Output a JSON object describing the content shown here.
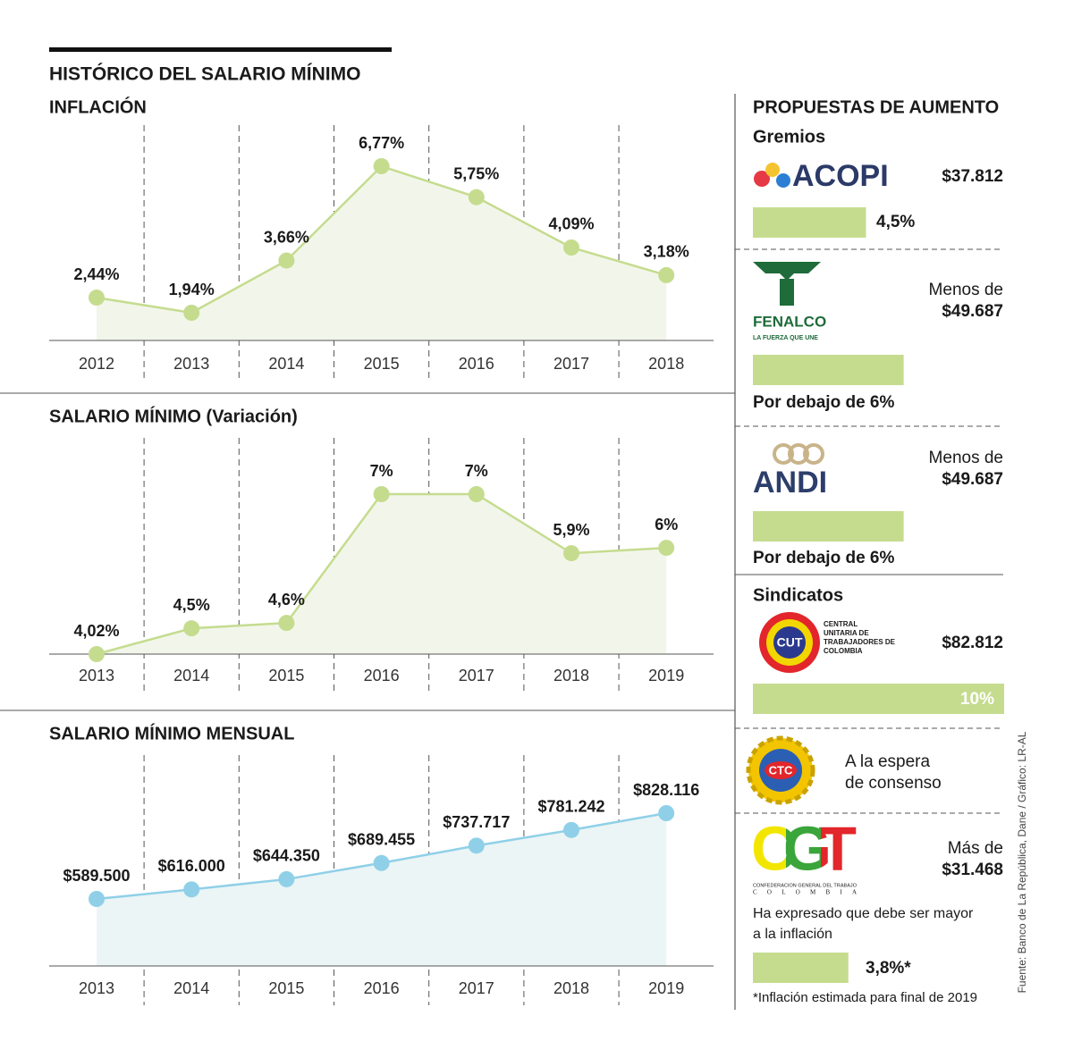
{
  "header": {
    "title": "HISTÓRICO DEL SALARIO MÍNIMO"
  },
  "chart_data": [
    {
      "type": "line",
      "title": "INFLACIÓN",
      "categories": [
        "2012",
        "2013",
        "2014",
        "2015",
        "2016",
        "2017",
        "2018"
      ],
      "values": [
        2.44,
        1.94,
        3.66,
        6.77,
        5.75,
        4.09,
        3.18
      ],
      "value_labels": [
        "2,44%",
        "1,94%",
        "3,66%",
        "6,77%",
        "5,75%",
        "4,09%",
        "3,18%"
      ],
      "color": "#c5dc8f",
      "fill": "#f2f6ea"
    },
    {
      "type": "line",
      "title": "SALARIO MÍNIMO (Variación)",
      "categories": [
        "2013",
        "2014",
        "2015",
        "2016",
        "2017",
        "2018",
        "2019"
      ],
      "values": [
        4.02,
        4.5,
        4.6,
        7,
        7,
        5.9,
        6
      ],
      "value_labels": [
        "4,02%",
        "4,5%",
        "4,6%",
        "7%",
        "7%",
        "5,9%",
        "6%"
      ],
      "color": "#c5dc8f",
      "fill": "#f2f6ea"
    },
    {
      "type": "line",
      "title": "SALARIO MÍNIMO  MENSUAL",
      "categories": [
        "2013",
        "2014",
        "2015",
        "2016",
        "2017",
        "2018",
        "2019"
      ],
      "values": [
        589500,
        616000,
        644350,
        689455,
        737717,
        781242,
        828116
      ],
      "value_labels": [
        "$589.500",
        "$616.000",
        "$644.350",
        "$689.455",
        "$737.717",
        "$781.242",
        "$828.116"
      ],
      "color": "#8fd0e8",
      "fill": "#ebf5f5"
    }
  ],
  "proposals": {
    "title": "PROPUESTAS DE AUMENTO",
    "groups": [
      {
        "name": "Gremios",
        "items": [
          {
            "logo": {
              "name": "ACOPI"
            },
            "amount": "$37.812",
            "value": 4.5,
            "value_label": "4,5%"
          },
          {
            "logo": {
              "name": "FENALCO",
              "slogan": "LA FUERZA QUE UNE"
            },
            "prefix": "Menos de",
            "amount": "$49.687",
            "value": 6,
            "value_label": "Por debajo de 6%"
          },
          {
            "logo": {
              "name": "ANDI"
            },
            "prefix": "Menos de",
            "amount": "$49.687",
            "value": 6,
            "value_label": "Por debajo de 6%"
          }
        ]
      },
      {
        "name": "Sindicatos",
        "items": [
          {
            "logo": {
              "name": "CUT",
              "lines": [
                "CENTRAL",
                "UNITARIA DE",
                "TRABAJADORES DE",
                "COLOMBIA"
              ]
            },
            "amount": "$82.812",
            "value": 10,
            "value_label": "10%"
          },
          {
            "logo": {
              "name": "CTC"
            },
            "note": [
              "A la espera",
              "de consenso"
            ]
          },
          {
            "logo": {
              "name": "CGT",
              "subtitle": "CONFEDERACION GENERAL DEL TRABAJO",
              "country": "COLOMBIA"
            },
            "prefix": "Más de",
            "amount": "$31.468",
            "note": [
              "Ha expresado que debe ser mayor",
              "a la inflación"
            ],
            "value": 3.8,
            "value_label": "3,8%*"
          }
        ]
      }
    ]
  },
  "footnote": "*Inflación estimada para final de 2019",
  "source": "Fuente: Banco de La República, Dane / Gráfico: LR-AL"
}
